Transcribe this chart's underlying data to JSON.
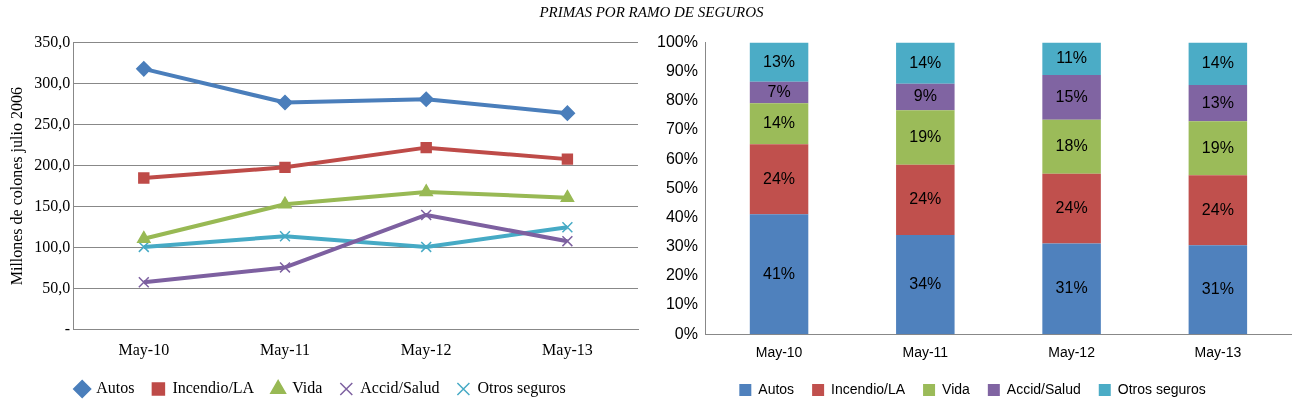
{
  "chart_data": [
    {
      "type": "line",
      "title": "PRIMAS POR RAMO DE SEGUROS",
      "ylabel": "Millones de colones julio 2006",
      "categories": [
        "May-10",
        "May-11",
        "May-12",
        "May-13"
      ],
      "series": [
        {
          "name": "Autos",
          "color": "#4a7ebb",
          "marker": "diamond",
          "values": [
            318,
            277,
            281,
            264
          ]
        },
        {
          "name": "Incendio/LA",
          "color": "#be4b48",
          "marker": "square",
          "values": [
            185,
            198,
            222,
            208
          ]
        },
        {
          "name": "Vida",
          "color": "#98b954",
          "marker": "triangle",
          "values": [
            111,
            153,
            168,
            161
          ]
        },
        {
          "name": "Accid/Salud",
          "color": "#7d60a0",
          "marker": "cross",
          "values": [
            58,
            76,
            140,
            108
          ]
        },
        {
          "name": "Otros seguros",
          "color": "#46aac5",
          "marker": "cross",
          "values": [
            101,
            114,
            101,
            125
          ]
        }
      ],
      "ylim": [
        0,
        350
      ],
      "yticks": [
        {
          "value": 0,
          "label": "-"
        },
        {
          "value": 50,
          "label": "50,0"
        },
        {
          "value": 100,
          "label": "100,0"
        },
        {
          "value": 150,
          "label": "150,0"
        },
        {
          "value": 200,
          "label": "200,0"
        },
        {
          "value": 250,
          "label": "250,0"
        },
        {
          "value": 300,
          "label": "300,0"
        },
        {
          "value": 350,
          "label": "350,0"
        }
      ],
      "grid": "y",
      "legend": "bottom",
      "line_style": "solid"
    },
    {
      "type": "bar",
      "stacked": true,
      "categories": [
        "May-10",
        "May-11",
        "May-12",
        "May-13"
      ],
      "series": [
        {
          "name": "Autos",
          "color": "#4f81bd",
          "values": [
            41.1,
            34.0,
            31.1,
            30.5
          ],
          "value_labels": [
            "41%",
            "34%",
            "31%",
            "31%"
          ]
        },
        {
          "name": "Incendio/LA",
          "color": "#c0504d",
          "values": [
            24.0,
            24.1,
            23.9,
            24.0
          ],
          "value_labels": [
            "24%",
            "24%",
            "24%",
            "24%"
          ]
        },
        {
          "name": "Vida",
          "color": "#9bbb59",
          "values": [
            14.1,
            18.7,
            18.5,
            18.5
          ],
          "value_labels": [
            "14%",
            "19%",
            "18%",
            "19%"
          ]
        },
        {
          "name": "Accid/Salud",
          "color": "#8064a2",
          "values": [
            7.4,
            9.1,
            15.4,
            12.5
          ],
          "value_labels": [
            "7%",
            "9%",
            "15%",
            "13%"
          ]
        },
        {
          "name": "Otros seguros",
          "color": "#4bacc6",
          "values": [
            13.4,
            14.1,
            11.1,
            14.5
          ],
          "value_labels": [
            "13%",
            "14%",
            "11%",
            "14%"
          ]
        }
      ],
      "ylim": [
        0,
        100
      ],
      "yticks": [
        {
          "value": 0,
          "label": "0%"
        },
        {
          "value": 10,
          "label": "10%"
        },
        {
          "value": 20,
          "label": "20%"
        },
        {
          "value": 30,
          "label": "30%"
        },
        {
          "value": 40,
          "label": "40%"
        },
        {
          "value": 50,
          "label": "50%"
        },
        {
          "value": 60,
          "label": "60%"
        },
        {
          "value": 70,
          "label": "70%"
        },
        {
          "value": 80,
          "label": "80%"
        },
        {
          "value": 90,
          "label": "90%"
        },
        {
          "value": 100,
          "label": "100%"
        }
      ],
      "grid": false,
      "legend": "bottom"
    }
  ]
}
